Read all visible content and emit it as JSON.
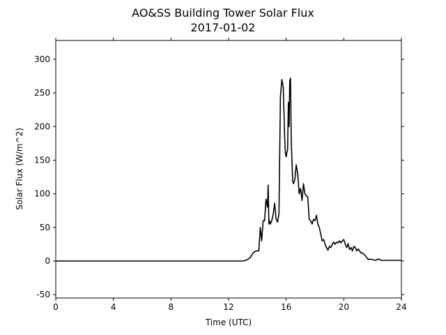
{
  "chart_data": {
    "type": "line",
    "title": "AO&SS Building Tower Solar Flux",
    "subtitle": "2017-01-02",
    "xlabel": "Time (UTC)",
    "ylabel": "Solar Flux (W/m^2)",
    "xlim": [
      0,
      24
    ],
    "ylim": [
      -55,
      328
    ],
    "xticks": [
      0,
      4,
      8,
      12,
      16,
      20,
      24
    ],
    "yticks": [
      -50,
      0,
      50,
      100,
      150,
      200,
      250,
      300
    ],
    "grid": false,
    "line_color": "#000000",
    "series": [
      {
        "x": [
          0,
          12.0,
          13.0,
          13.3,
          13.5,
          13.7,
          13.9,
          14.1,
          14.2,
          14.3,
          14.4,
          14.5,
          14.6,
          14.7,
          14.75,
          14.8,
          14.85,
          14.9,
          15.0,
          15.1,
          15.2,
          15.3,
          15.4,
          15.5,
          15.6,
          15.7,
          15.8,
          15.9,
          15.95,
          16.0,
          16.05,
          16.1,
          16.15,
          16.2,
          16.25,
          16.3,
          16.35,
          16.4,
          16.45,
          16.5,
          16.6,
          16.7,
          16.8,
          16.9,
          17.0,
          17.1,
          17.2,
          17.3,
          17.4,
          17.5,
          17.6,
          17.7,
          17.8,
          17.9,
          18.0,
          18.1,
          18.2,
          18.3,
          18.4,
          18.5,
          18.6,
          18.7,
          18.8,
          18.9,
          19.0,
          19.1,
          19.2,
          19.3,
          19.4,
          19.5,
          19.6,
          19.7,
          19.8,
          19.9,
          20.0,
          20.1,
          20.2,
          20.3,
          20.4,
          20.5,
          20.6,
          20.7,
          20.8,
          20.9,
          21.0,
          21.1,
          21.2,
          21.3,
          21.4,
          21.5,
          21.6,
          21.7,
          21.8,
          22.0,
          22.2,
          22.4,
          22.6,
          23.0,
          24.0
        ],
        "y": [
          0,
          0,
          0,
          2,
          5,
          12,
          15,
          15,
          50,
          30,
          60,
          60,
          92,
          80,
          113,
          55,
          60,
          55,
          60,
          70,
          86,
          62,
          58,
          70,
          245,
          270,
          258,
          180,
          160,
          155,
          162,
          165,
          236,
          200,
          268,
          272,
          180,
          150,
          120,
          115,
          121,
          143,
          130,
          100,
          108,
          90,
          115,
          100,
          97,
          95,
          62,
          60,
          55,
          62,
          60,
          68,
          55,
          50,
          40,
          30,
          32,
          25,
          20,
          16,
          22,
          20,
          25,
          28,
          25,
          28,
          27,
          30,
          27,
          30,
          32,
          25,
          20,
          26,
          17,
          20,
          15,
          22,
          20,
          15,
          18,
          15,
          12,
          12,
          10,
          8,
          5,
          2,
          3,
          2,
          1,
          3,
          1,
          1,
          1
        ]
      }
    ]
  }
}
